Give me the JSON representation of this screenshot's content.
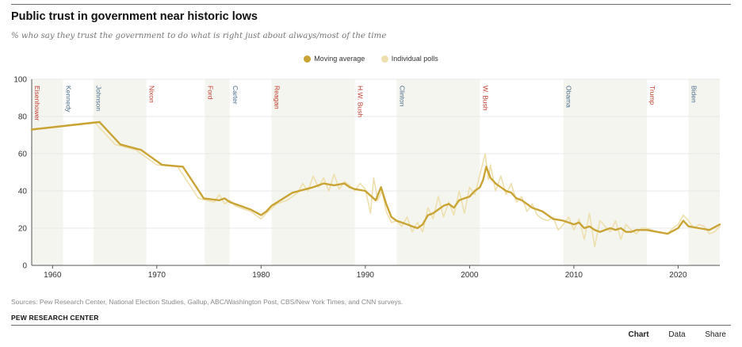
{
  "header": {
    "title": "Public trust in government near historic lows",
    "subtitle": "% who say they trust the government to do what is right just about always/most of the time"
  },
  "legend": [
    {
      "label": "Moving average",
      "color": "#c9a434"
    },
    {
      "label": "Individual polls",
      "color": "#eedfae"
    }
  ],
  "footer": {
    "source": "Sources: Pew Research Center, National Election Studies, Gallup, ABC/Washington Post, CBS/New York Times, and CNN surveys.",
    "brand": "PEW RESEARCH CENTER"
  },
  "tabs": [
    {
      "label": "Chart",
      "active": true
    },
    {
      "label": "Data",
      "active": false
    },
    {
      "label": "Share",
      "active": false
    }
  ],
  "colors": {
    "moving_average": "#c9a434",
    "individual_polls": "#eedfae",
    "shading": "#f5f5f0",
    "republican": "#bf3a2b",
    "democrat": "#4a6e8a"
  },
  "chart_data": {
    "type": "line",
    "title": "Public trust in government near historic lows",
    "xlabel": "",
    "ylabel": "",
    "xlim": [
      1958,
      2024
    ],
    "ylim": [
      0,
      100
    ],
    "x_ticks": [
      1960,
      1970,
      1980,
      1990,
      2000,
      2010,
      2020
    ],
    "y_ticks": [
      0,
      20,
      40,
      60,
      80,
      100
    ],
    "grid": true,
    "legend_position": "top",
    "presidents": [
      {
        "name": "Eisenhower",
        "party": "R",
        "start": 1958.0,
        "end": 1961.0
      },
      {
        "name": "Kennedy",
        "party": "D",
        "start": 1961.0,
        "end": 1963.9
      },
      {
        "name": "Johnson",
        "party": "D",
        "start": 1963.9,
        "end": 1969.0
      },
      {
        "name": "Nixon",
        "party": "R",
        "start": 1969.0,
        "end": 1974.6
      },
      {
        "name": "Ford",
        "party": "R",
        "start": 1974.6,
        "end": 1977.0
      },
      {
        "name": "Carter",
        "party": "D",
        "start": 1977.0,
        "end": 1981.0
      },
      {
        "name": "Reagan",
        "party": "R",
        "start": 1981.0,
        "end": 1989.0
      },
      {
        "name": "H.W. Bush",
        "party": "R",
        "start": 1989.0,
        "end": 1993.0
      },
      {
        "name": "Clinton",
        "party": "D",
        "start": 1993.0,
        "end": 2001.0
      },
      {
        "name": "W. Bush",
        "party": "R",
        "start": 2001.0,
        "end": 2009.0
      },
      {
        "name": "Obama",
        "party": "D",
        "start": 2009.0,
        "end": 2017.0
      },
      {
        "name": "Trump",
        "party": "R",
        "start": 2017.0,
        "end": 2021.0
      },
      {
        "name": "Biden",
        "party": "D",
        "start": 2021.0,
        "end": 2024.0
      }
    ],
    "series": [
      {
        "name": "Individual polls",
        "x": [
          1958,
          1964,
          1966,
          1968,
          1970,
          1972,
          1974,
          1975.5,
          1976,
          1976.5,
          1977,
          1977.5,
          1978,
          1979,
          1980,
          1980.5,
          1981.5,
          1982.5,
          1983.5,
          1984,
          1984.5,
          1985,
          1985.5,
          1986,
          1986.5,
          1987,
          1987.5,
          1988,
          1988.5,
          1989,
          1989.5,
          1990,
          1990.5,
          1990.8,
          1991.2,
          1991.6,
          1992,
          1992.5,
          1993,
          1993.5,
          1994,
          1994.5,
          1995,
          1995.5,
          1996,
          1996.5,
          1997,
          1997.5,
          1998,
          1998.5,
          1999,
          1999.5,
          2000,
          2000.5,
          2001,
          2001.5,
          2001.8,
          2002,
          2002.5,
          2003,
          2003.5,
          2004,
          2004.5,
          2005,
          2005.5,
          2006,
          2006.5,
          2007,
          2007.5,
          2008,
          2008.5,
          2009,
          2009.5,
          2010,
          2010.5,
          2011,
          2011.5,
          2012,
          2012.5,
          2013,
          2013.5,
          2014,
          2014.5,
          2015,
          2015.5,
          2016,
          2016.5,
          2017,
          2018,
          2019,
          2019.5,
          2020,
          2020.5,
          2021,
          2021.5,
          2022,
          2022.5,
          2023,
          2023.5,
          2024
        ],
        "y": [
          73,
          77,
          65,
          62,
          54,
          53,
          36,
          34,
          38,
          33,
          35,
          32,
          31,
          29,
          25,
          28,
          33,
          35,
          39,
          44,
          40,
          48,
          42,
          47,
          40,
          49,
          41,
          45,
          43,
          40,
          44,
          41,
          28,
          47,
          35,
          40,
          29,
          23,
          24,
          21,
          26,
          18,
          23,
          18,
          31,
          25,
          37,
          26,
          34,
          27,
          40,
          28,
          42,
          38,
          49,
          60,
          46,
          54,
          40,
          48,
          38,
          44,
          34,
          37,
          29,
          33,
          27,
          25,
          24,
          26,
          19,
          22,
          26,
          19,
          25,
          14,
          28,
          10,
          24,
          21,
          18,
          24,
          14,
          22,
          19,
          17,
          20,
          20,
          18,
          17,
          20,
          22,
          27,
          24,
          20,
          22,
          21,
          17,
          18,
          21
        ]
      },
      {
        "name": "Moving average",
        "x": [
          1958,
          1964.5,
          1966.5,
          1968.5,
          1970.5,
          1972.5,
          1974.5,
          1976,
          1976.5,
          1977,
          1978,
          1979,
          1980,
          1980.5,
          1981,
          1983,
          1985,
          1986,
          1987,
          1988,
          1988.5,
          1989,
          1990,
          1991,
          1991.5,
          1992,
          1992.5,
          1993,
          1993.5,
          1994,
          1994.5,
          1995,
          1995.5,
          1996,
          1996.5,
          1997,
          1997.5,
          1998,
          1998.5,
          1999,
          1999.5,
          2000,
          2000.5,
          2001,
          2001.3,
          2001.6,
          2002,
          2002.5,
          2003,
          2003.5,
          2004,
          2004.5,
          2005,
          2005.5,
          2006,
          2006.5,
          2007,
          2008,
          2009,
          2009.5,
          2010,
          2010.5,
          2011,
          2011.5,
          2012,
          2012.5,
          2013,
          2013.5,
          2014,
          2014.5,
          2015,
          2015.5,
          2016,
          2017,
          2018,
          2019,
          2020,
          2020.5,
          2021,
          2022,
          2023,
          2024
        ],
        "y": [
          73,
          77,
          65,
          62,
          54,
          53,
          36,
          35,
          36,
          34,
          32,
          30,
          27,
          29,
          32,
          39,
          42,
          44,
          43,
          44,
          42,
          41,
          40,
          35,
          42,
          33,
          26,
          24,
          23,
          22,
          21,
          20,
          22,
          27,
          28,
          30,
          32,
          33,
          31,
          35,
          36,
          37,
          40,
          42,
          46,
          53,
          47,
          44,
          42,
          40,
          39,
          36,
          35,
          33,
          31,
          30,
          29,
          25,
          24,
          23,
          22,
          23,
          20,
          21,
          19,
          18,
          19,
          20,
          19,
          20,
          18,
          18,
          19,
          19,
          18,
          17,
          20,
          24,
          21,
          20,
          19,
          22
        ]
      }
    ]
  }
}
